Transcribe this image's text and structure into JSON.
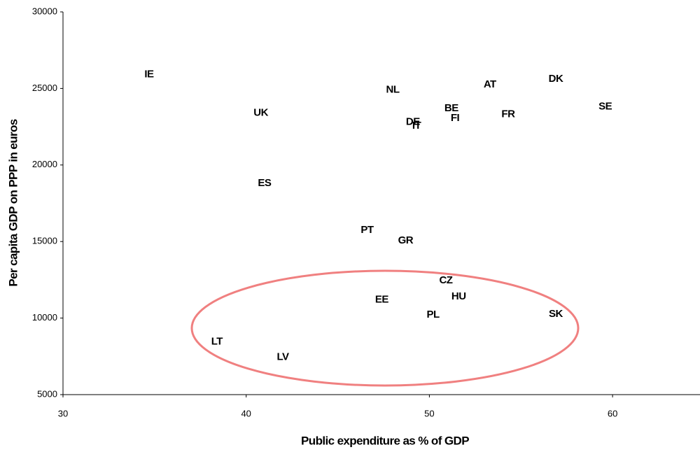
{
  "chart_data": {
    "type": "scatter",
    "x_label": "Public expenditure as % of GDP",
    "y_label": "Per capita GDP on PPP in euros",
    "labels": [
      "IE",
      "UK",
      "NL",
      "AT",
      "DK",
      "SE",
      "BE",
      "FR",
      "FI",
      "DE",
      "IT",
      "ES",
      "PT",
      "GR",
      "CZ",
      "HU",
      "EE",
      "PL",
      "SK",
      "LT",
      "LV"
    ],
    "x": [
      34.7,
      40.8,
      48.0,
      53.3,
      56.9,
      59.6,
      51.2,
      54.3,
      51.4,
      49.1,
      49.3,
      41.0,
      46.6,
      48.7,
      50.9,
      51.6,
      47.4,
      50.2,
      56.9,
      38.4,
      42.0
    ],
    "y": [
      25900,
      23400,
      24900,
      25250,
      25600,
      23800,
      23700,
      23300,
      23050,
      22800,
      22550,
      18800,
      15750,
      15050,
      12450,
      11400,
      11200,
      10200,
      10250,
      8450,
      7450
    ],
    "xlim": [
      30,
      65
    ],
    "ylim": [
      5000,
      30000
    ],
    "xticks": [
      30,
      40,
      50,
      60
    ],
    "yticks": [
      5000,
      10000,
      15000,
      20000,
      25000,
      30000
    ],
    "grid": false
  }
}
